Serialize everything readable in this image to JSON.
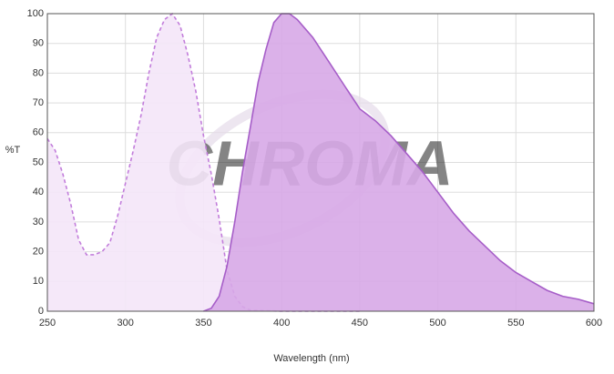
{
  "chart_data": {
    "type": "area",
    "watermark": "CHROMA",
    "xlabel": "Wavelength (nm)",
    "ylabel": "%T",
    "xlim": [
      250,
      600
    ],
    "ylim": [
      0,
      100
    ],
    "xticks": [
      250,
      300,
      350,
      400,
      450,
      500,
      550,
      600
    ],
    "yticks": [
      0,
      10,
      20,
      30,
      40,
      50,
      60,
      70,
      80,
      90,
      100
    ],
    "grid": true,
    "series": [
      {
        "color": "#c27ddb",
        "fill": "#f4e6f8",
        "dashed": true,
        "x": [
          250,
          255,
          260,
          265,
          270,
          275,
          280,
          285,
          290,
          295,
          300,
          305,
          310,
          315,
          320,
          325,
          330,
          335,
          340,
          345,
          350,
          355,
          360,
          365,
          370,
          375,
          380,
          400,
          450
        ],
        "values": [
          58,
          54,
          46,
          36,
          24,
          19,
          19,
          20,
          23,
          32,
          43,
          54,
          66,
          80,
          92,
          98,
          100,
          96,
          86,
          74,
          59,
          46,
          31,
          14,
          5,
          1.5,
          0.3,
          0,
          0
        ]
      },
      {
        "color": "#a65ec8",
        "fill": "#d7a9e7",
        "dashed": false,
        "x": [
          350,
          355,
          360,
          365,
          370,
          375,
          380,
          385,
          390,
          395,
          400,
          405,
          410,
          420,
          430,
          440,
          450,
          460,
          470,
          480,
          490,
          500,
          510,
          520,
          530,
          540,
          550,
          560,
          570,
          580,
          590,
          600
        ],
        "values": [
          0,
          1,
          5,
          15,
          30,
          47,
          62,
          77,
          88,
          97,
          100,
          100,
          98,
          92,
          84,
          76,
          68,
          64,
          59,
          53,
          47,
          40,
          33,
          27,
          22,
          17,
          13,
          10,
          7,
          5,
          4,
          2.5
        ]
      }
    ]
  }
}
